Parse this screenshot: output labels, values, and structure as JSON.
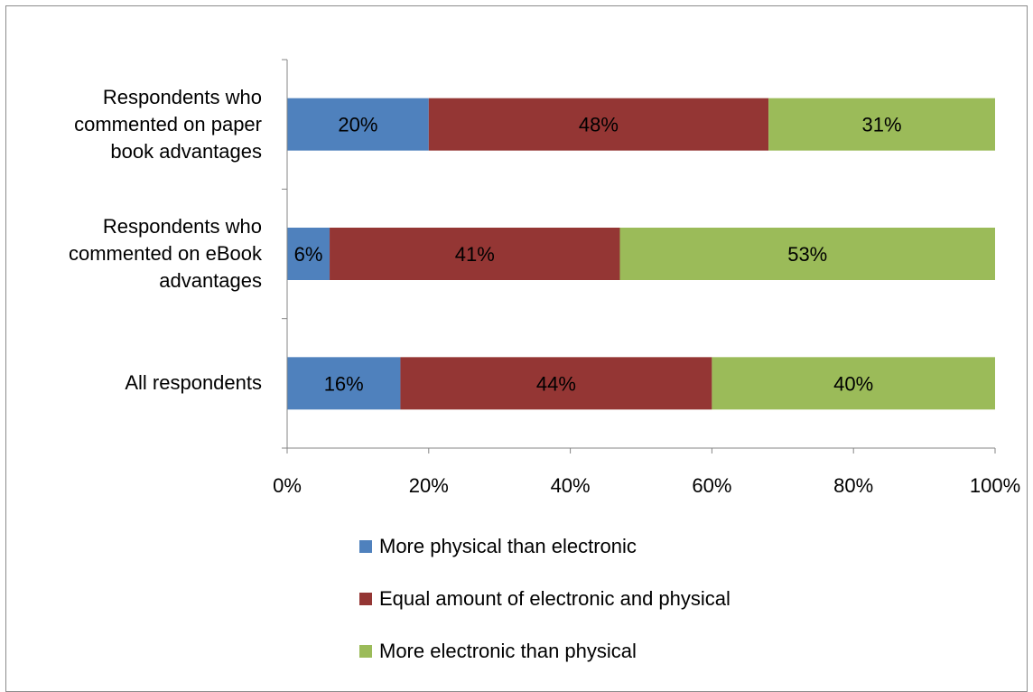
{
  "chart_data": {
    "type": "bar",
    "orientation": "horizontal",
    "stacked": "percent",
    "categories": [
      "Respondents who commented on paper book advantages",
      "Respondents who commented on eBook advantages",
      "All respondents"
    ],
    "category_lines": [
      [
        "Respondents who",
        "commented on paper",
        "book advantages"
      ],
      [
        "Respondents who",
        "commented on eBook",
        "advantages"
      ],
      [
        "All respondents"
      ]
    ],
    "series": [
      {
        "name": "More physical than electronic",
        "color": "#4F81BD",
        "values": [
          20,
          6,
          16
        ],
        "labels": [
          "20%",
          "6%",
          "16%"
        ]
      },
      {
        "name": "Equal amount of electronic and physical",
        "color": "#943634",
        "values": [
          48,
          41,
          44
        ],
        "labels": [
          "48%",
          "41%",
          "44%"
        ]
      },
      {
        "name": "More electronic than physical",
        "color": "#9BBB59",
        "values": [
          31,
          53,
          40
        ],
        "labels": [
          "31%",
          "53%",
          "40%"
        ]
      }
    ],
    "xlim": [
      0,
      100
    ],
    "xticks": [
      "0%",
      "20%",
      "40%",
      "60%",
      "80%",
      "100%"
    ],
    "grid": false,
    "legend_position": "bottom"
  }
}
